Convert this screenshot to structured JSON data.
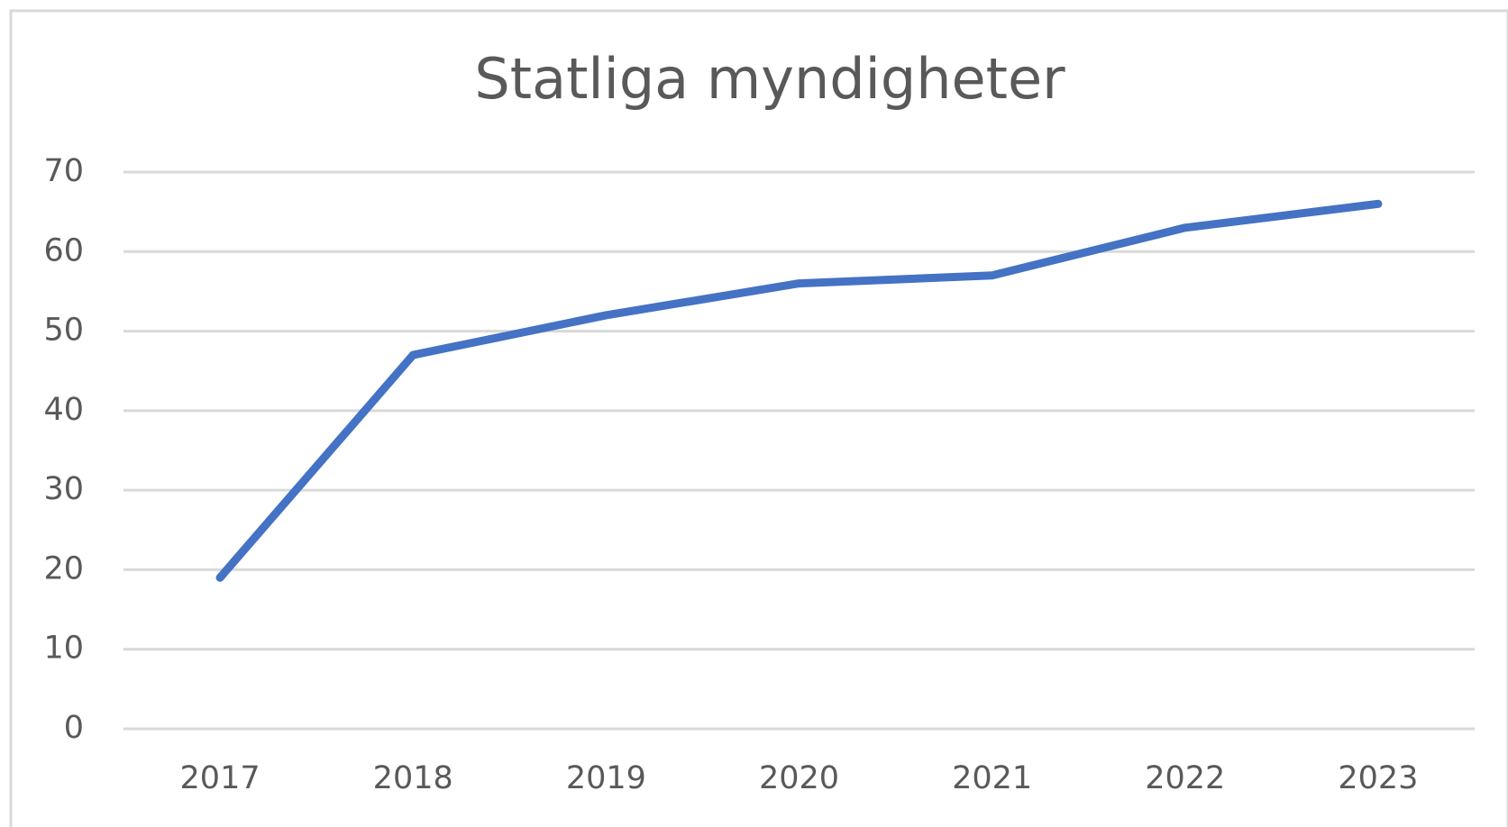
{
  "chart_data": {
    "type": "line",
    "title": "Statliga myndigheter",
    "categories": [
      "2017",
      "2018",
      "2019",
      "2020",
      "2021",
      "2022",
      "2023"
    ],
    "series": [
      {
        "name": "Statliga myndigheter",
        "color": "#4472c4",
        "values": [
          19,
          47,
          52,
          56,
          57,
          63,
          66
        ]
      }
    ],
    "ylim": [
      0,
      70
    ],
    "yticks": [
      0,
      10,
      20,
      30,
      40,
      50,
      60,
      70
    ],
    "grid": true
  }
}
